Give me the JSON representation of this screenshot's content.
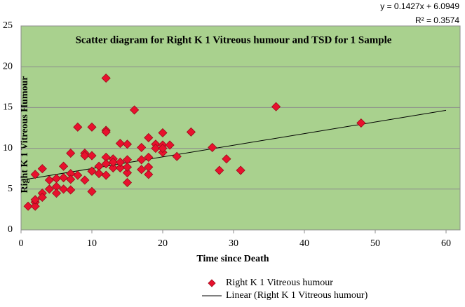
{
  "chart_data": {
    "type": "scatter",
    "title": "Scatter diagram for Right  K 1 Vitreous humour and TSD for 1 Sample",
    "x_label": "Time since Death",
    "y_label": "Right  K 1 Vitreous Humour",
    "series": [
      {
        "name": "Right K 1 Vitreous humour",
        "color": "#e8112d",
        "x": [
          1,
          2,
          2,
          2,
          2,
          3,
          3,
          3,
          4,
          4,
          5,
          5,
          5,
          6,
          6,
          6,
          7,
          7,
          7,
          7,
          8,
          8,
          9,
          9,
          9,
          10,
          10,
          10,
          10,
          11,
          11,
          12,
          12,
          12,
          12,
          12,
          12,
          13,
          13,
          13,
          14,
          14,
          14,
          15,
          15,
          15,
          15,
          15,
          16,
          17,
          17,
          17,
          18,
          18,
          18,
          18,
          19,
          19,
          20,
          20,
          20,
          20,
          21,
          22,
          24,
          27,
          28,
          29,
          31,
          36,
          48
        ],
        "values": [
          2.9,
          3.4,
          2.9,
          3.7,
          6.8,
          4.5,
          4.0,
          7.5,
          6.1,
          5.0,
          5.3,
          4.5,
          6.3,
          7.8,
          5.0,
          6.4,
          9.4,
          4.9,
          6.9,
          6.2,
          12.6,
          6.7,
          9.4,
          6.1,
          9.1,
          12.6,
          4.7,
          7.2,
          9.1,
          7.8,
          6.9,
          18.6,
          12.2,
          12.0,
          8.9,
          6.7,
          8.1,
          8.7,
          7.6,
          8.3,
          10.6,
          7.6,
          8.3,
          10.5,
          5.8,
          7.0,
          8.6,
          7.7,
          14.7,
          10.1,
          7.4,
          8.6,
          11.3,
          6.8,
          8.9,
          7.7,
          10.5,
          10.0,
          11.9,
          9.5,
          10.4,
          10.0,
          10.4,
          9.0,
          12.0,
          10.1,
          7.3,
          8.7,
          7.3,
          15.1,
          13.1
        ]
      }
    ],
    "trendline": {
      "name": "Linear (Right K 1 Vitreous humour)",
      "color": "#000000",
      "slope": 0.1427,
      "intercept": 6.0949,
      "equation": "y = 0.1427x + 6.0949",
      "r2_label": "R² = 0.3574"
    },
    "xlim": [
      0,
      60
    ],
    "xticks": [
      0,
      10,
      20,
      30,
      40,
      50,
      60
    ],
    "ylim": [
      0,
      25
    ],
    "yticks": [
      0,
      5,
      10,
      15,
      20,
      25
    ],
    "grid": true,
    "background": "#a9d18e"
  }
}
